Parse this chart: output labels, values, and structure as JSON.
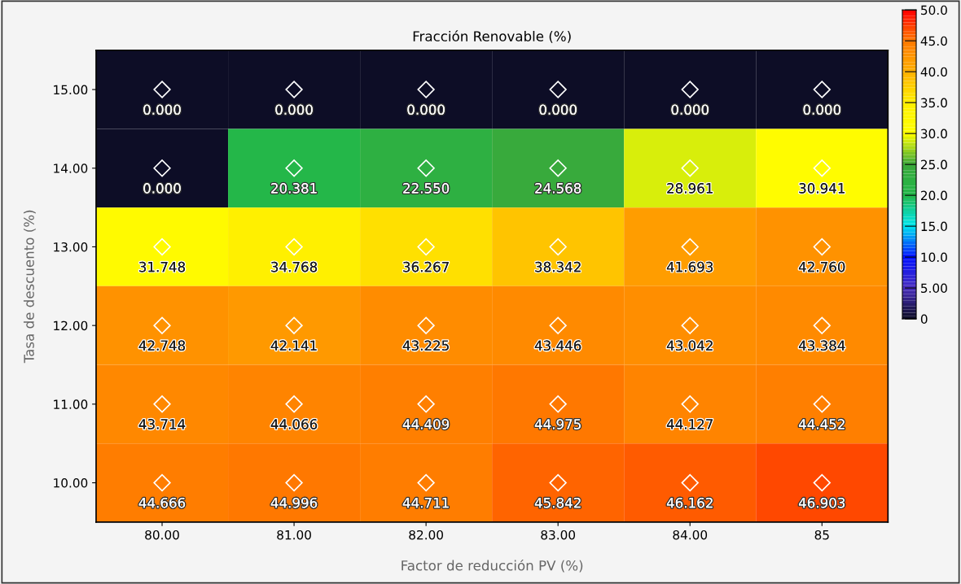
{
  "chart_data": {
    "type": "heatmap",
    "title": "Fracción Renovable (%)",
    "xlabel": "Factor de reducción PV (%)",
    "ylabel": "Tasa de descuento (%)",
    "categories": [
      "80.00",
      "81.00",
      "82.00",
      "83.00",
      "84.00",
      "85"
    ],
    "y_categories": [
      "15.00",
      "14.00",
      "13.00",
      "12.00",
      "11.00",
      "10.00"
    ],
    "cells": [
      [
        0.0,
        0.0,
        0.0,
        0.0,
        0.0,
        0.0
      ],
      [
        0.0,
        20.381,
        22.55,
        24.568,
        28.961,
        30.941
      ],
      [
        31.748,
        34.768,
        36.267,
        38.342,
        41.693,
        42.76
      ],
      [
        42.748,
        42.141,
        43.225,
        43.446,
        43.042,
        43.384
      ],
      [
        43.714,
        44.066,
        44.409,
        44.975,
        44.127,
        44.452
      ],
      [
        44.666,
        44.996,
        44.711,
        45.842,
        46.162,
        46.903
      ]
    ],
    "cell_labels": [
      [
        "0.000",
        "0.000",
        "0.000",
        "0.000",
        "0.000",
        "0.000"
      ],
      [
        "0.000",
        "20.381",
        "22.550",
        "24.568",
        "28.961",
        "30.941"
      ],
      [
        "31.748",
        "34.768",
        "36.267",
        "38.342",
        "41.693",
        "42.760"
      ],
      [
        "42.748",
        "42.141",
        "43.225",
        "43.446",
        "43.042",
        "43.384"
      ],
      [
        "43.714",
        "44.066",
        "44.409",
        "44.975",
        "44.127",
        "44.452"
      ],
      [
        "44.666",
        "44.996",
        "44.711",
        "45.842",
        "46.162",
        "46.903"
      ]
    ],
    "clim": [
      0,
      50
    ],
    "cticks": [
      {
        "value": 0,
        "label": "0"
      },
      {
        "value": 5,
        "label": "5.00"
      },
      {
        "value": 10,
        "label": "10.0"
      },
      {
        "value": 15,
        "label": "15.0"
      },
      {
        "value": 20,
        "label": "20.0"
      },
      {
        "value": 25,
        "label": "25.0"
      },
      {
        "value": 30,
        "label": "30.0"
      },
      {
        "value": 35,
        "label": "35.0"
      },
      {
        "value": 40,
        "label": "40.0"
      },
      {
        "value": 45,
        "label": "45.0"
      },
      {
        "value": 50,
        "label": "50.0"
      }
    ],
    "marker": "diamond"
  }
}
